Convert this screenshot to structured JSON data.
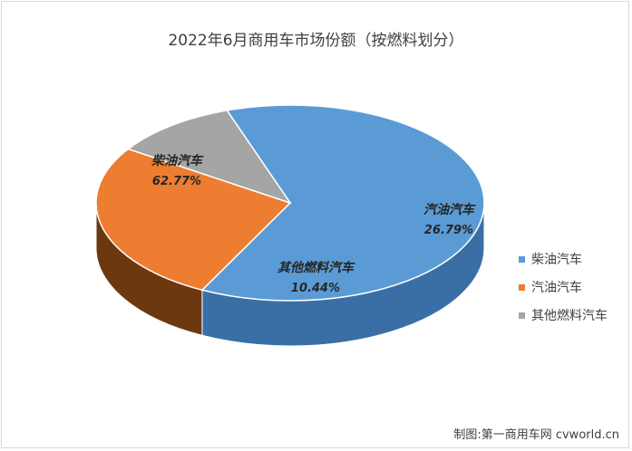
{
  "chart_data": {
    "type": "pie",
    "title": "2022年6月商用车市场份额（按燃料划分）",
    "categories": [
      "柴油汽车",
      "汽油汽车",
      "其他燃料汽车"
    ],
    "values": [
      62.77,
      26.79,
      10.44
    ],
    "value_labels": [
      "62.77%",
      "26.79%",
      "10.44%"
    ],
    "colors": [
      "#5b9bd5",
      "#ed7d31",
      "#a5a5a5"
    ],
    "side_colors": [
      "#3a6fa5",
      "#6b3810",
      "#3c3c3c"
    ],
    "style": "3d",
    "legend_position": "right"
  },
  "credit": "制图:第一商用车网 cvworld.cn"
}
